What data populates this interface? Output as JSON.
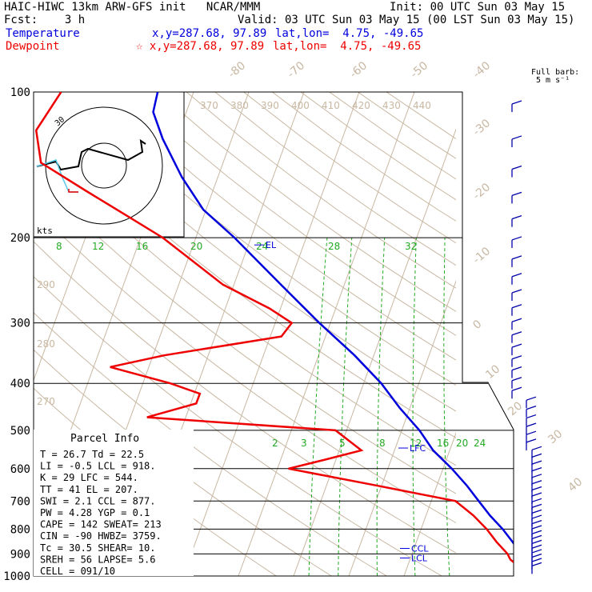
{
  "header": {
    "title": "HAIC-HIWC 13km ARW-GFS init   NCAR/MMM",
    "init": "Init: 00 UTC Sun 03 May 15",
    "fcst": "Fcst:    3 h",
    "valid": "Valid: 03 UTC Sun 03 May 15 (00 LST Sun 03 May 15)",
    "temp_label": "Temperature",
    "temp_xy": "x,y=287.68, 97.89",
    "temp_latlon": "lat,lon=  4.75, -49.65",
    "dew_label": "Dewpoint",
    "dew_xy": "☆ x,y=287.68, 97.89",
    "dew_latlon": "lat,lon=  4.75, -49.65"
  },
  "barb_header": {
    "line1": "Full barb:",
    "line2": "5 m s⁻¹"
  },
  "hodograph": {
    "units": "kts",
    "ring_label": "30"
  },
  "parcel": {
    "title": "Parcel Info",
    "lines": [
      "T  =   26.7  Td =  22.5",
      "LI =   -0.5  LCL =  918.",
      "K  =     29  LFC =  544.",
      "TT =     41  EL  =  207.",
      "SWI =   2.1  CCL =  877.",
      "PW =   4.28  YGP =   0.1",
      "CAPE =   142  SWEAT=  213",
      "CIN =    -90  HWBZ= 3759.",
      "Tc =   30.5  SHEAR=  10.",
      "SREH =    56  LAPSE=  5.6",
      "CELL = 091/10"
    ]
  },
  "level_labels": [
    "EL",
    "LFC",
    "CCL",
    "LCL"
  ],
  "chart_data": {
    "type": "line",
    "title": "",
    "y_axis": "pressure (hPa), log scale",
    "ylim": [
      1000,
      100
    ],
    "xlim": [
      -40,
      45
    ],
    "pressure_ticks": [
      100,
      200,
      300,
      400,
      500,
      600,
      700,
      800,
      900,
      1000
    ],
    "isotherm_labels": [
      -80,
      -70,
      -60,
      -50,
      -40,
      -30,
      -20,
      -10,
      0,
      10,
      20,
      30,
      40
    ],
    "theta_labels": [
      370,
      380,
      390,
      400,
      410,
      420,
      430,
      440
    ],
    "theta_labels_left": [
      290,
      280,
      270
    ],
    "mixing_ratio_labels_upper": [
      8,
      12,
      16,
      20,
      24,
      28,
      32
    ],
    "mixing_ratio_labels_lower": [
      2,
      3,
      5,
      8,
      12,
      16,
      20,
      24
    ],
    "series": [
      {
        "name": "Temperature",
        "color": "#0000dd",
        "points": [
          [
            1000,
            25.5
          ],
          [
            975,
            23.2
          ],
          [
            950,
            22.0
          ],
          [
            925,
            20.4
          ],
          [
            900,
            19.6
          ],
          [
            875,
            18.6
          ],
          [
            850,
            17.4
          ],
          [
            800,
            14.8
          ],
          [
            750,
            11.6
          ],
          [
            700,
            8.6
          ],
          [
            650,
            5.4
          ],
          [
            600,
            1.6
          ],
          [
            550,
            -3.0
          ],
          [
            500,
            -6.8
          ],
          [
            450,
            -11.8
          ],
          [
            400,
            -16.8
          ],
          [
            350,
            -23.5
          ],
          [
            300,
            -32.0
          ],
          [
            250,
            -41.5
          ],
          [
            200,
            -53.0
          ],
          [
            175,
            -60.5
          ],
          [
            150,
            -66.5
          ],
          [
            125,
            -72.5
          ],
          [
            110,
            -76.0
          ],
          [
            100,
            -76.5
          ]
        ]
      },
      {
        "name": "Dewpoint",
        "color": "#ee0000",
        "points": [
          [
            1000,
            21.5
          ],
          [
            975,
            20.4
          ],
          [
            950,
            19.8
          ],
          [
            925,
            18.2
          ],
          [
            900,
            17.3
          ],
          [
            850,
            14.5
          ],
          [
            800,
            11.9
          ],
          [
            750,
            8.6
          ],
          [
            700,
            4.4
          ],
          [
            650,
            -11.0
          ],
          [
            600,
            -28.0
          ],
          [
            575,
            -22.0
          ],
          [
            550,
            -16.0
          ],
          [
            500,
            -22.0
          ],
          [
            470,
            -57.0
          ],
          [
            440,
            -49.0
          ],
          [
            420,
            -49.0
          ],
          [
            400,
            -55.0
          ],
          [
            370,
            -67.0
          ],
          [
            350,
            -58.0
          ],
          [
            320,
            -38.0
          ],
          [
            300,
            -37.0
          ],
          [
            280,
            -42.0
          ],
          [
            250,
            -52.0
          ],
          [
            200,
            -66.0
          ],
          [
            180,
            -74.0
          ],
          [
            160,
            -83.0
          ],
          [
            140,
            -93.0
          ],
          [
            120,
            -96.0
          ],
          [
            100,
            -94.0
          ]
        ]
      }
    ],
    "wind_barb_levels": "100-1000 hPa, right margin"
  },
  "colors": {
    "temperature": "#0000dd",
    "dewpoint": "#ee0000",
    "isotherm": "#c8b8a2",
    "mixing_ratio": "#22aa22",
    "grid": "#000000"
  }
}
